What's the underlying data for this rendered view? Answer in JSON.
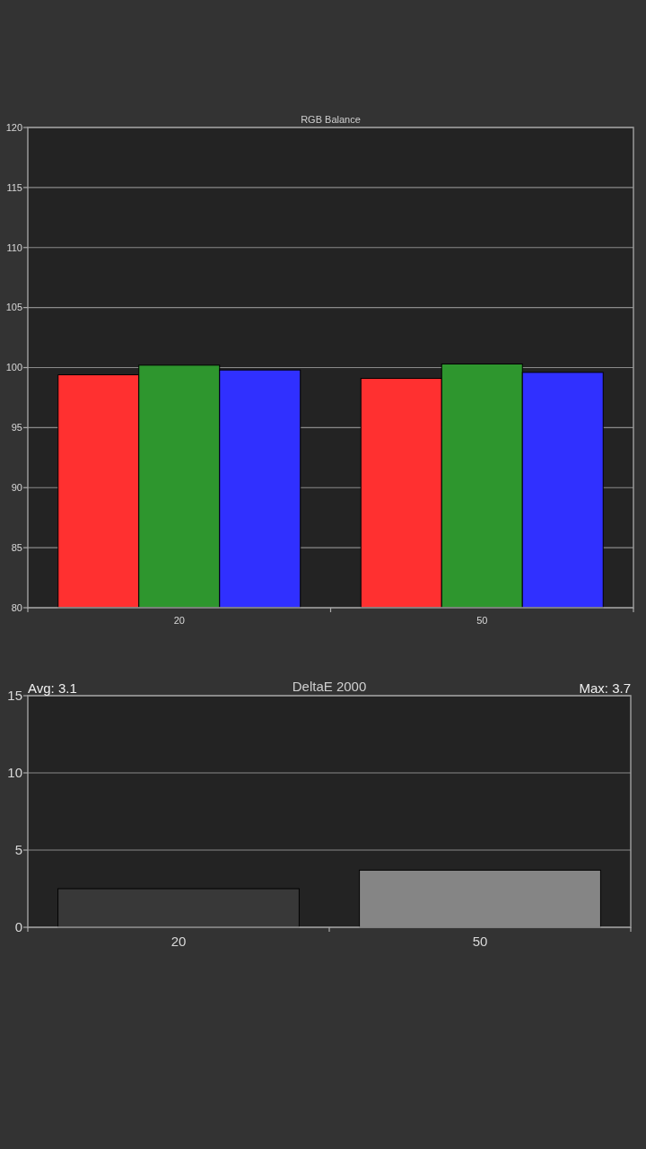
{
  "chart_data": [
    {
      "type": "bar",
      "title": "RGB Balance",
      "categories": [
        "20",
        "50"
      ],
      "series": [
        {
          "color": "#ff3030",
          "values": [
            99.4,
            99.1
          ]
        },
        {
          "color": "#2e962e",
          "values": [
            100.2,
            100.3
          ]
        },
        {
          "color": "#3030ff",
          "values": [
            99.8,
            99.6
          ]
        }
      ],
      "ylim": [
        80,
        120
      ],
      "yticks": [
        80,
        85,
        90,
        95,
        100,
        105,
        110,
        115,
        120
      ],
      "grid": "y"
    },
    {
      "type": "bar",
      "title": "DeltaE 2000",
      "categories": [
        "20",
        "50"
      ],
      "values": [
        2.5,
        3.7
      ],
      "colors": [
        "#383838",
        "#858585"
      ],
      "ylim": [
        0,
        15
      ],
      "yticks": [
        0,
        5,
        10,
        15
      ],
      "grid": "y",
      "annotations": [
        "Avg: 3.1",
        "Max: 3.7"
      ]
    }
  ]
}
